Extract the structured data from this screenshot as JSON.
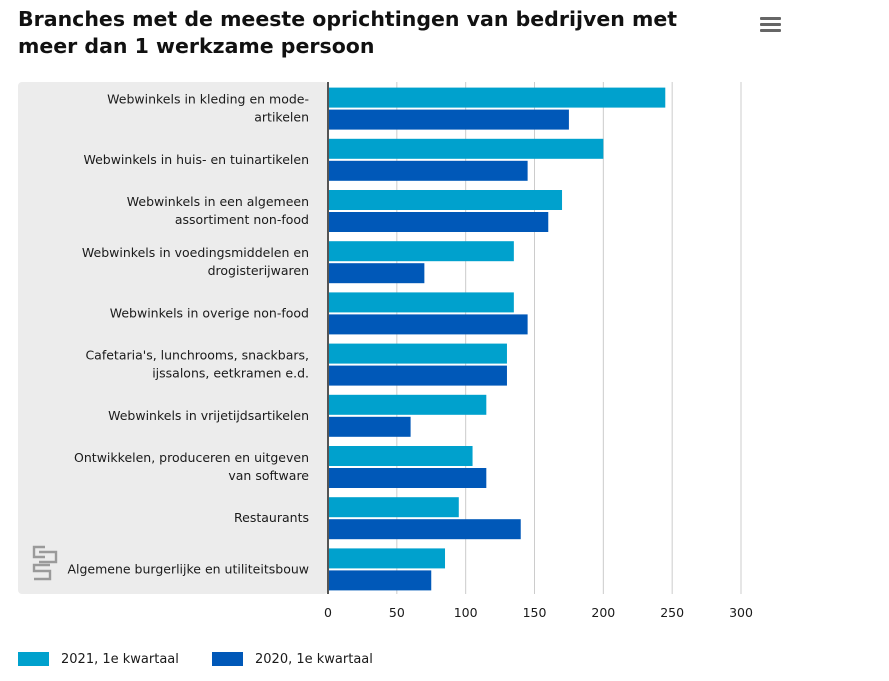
{
  "title": "Branches met de meeste oprichtingen van bedrijven met meer dan 1 werkzame persoon",
  "menu_icon": "hamburger-menu-icon",
  "logo_icon": "cbs-logo-icon",
  "colors": {
    "series_2021": "#00a1cd",
    "series_2020": "#0058b8",
    "panel": "#ececec",
    "grid": "#cccccc",
    "axis": "#555555"
  },
  "chart_data": {
    "type": "bar",
    "orientation": "horizontal",
    "title": "Branches met de meeste oprichtingen van bedrijven met meer dan 1 werkzame persoon",
    "categories": [
      [
        "Webwinkels in kleding en mode-",
        "artikelen"
      ],
      [
        "Webwinkels in huis- en tuinartikelen"
      ],
      [
        "Webwinkels in een algemeen",
        "assortiment non-food"
      ],
      [
        "Webwinkels in voedingsmiddelen en",
        "drogisterijwaren"
      ],
      [
        "Webwinkels in overige non-food"
      ],
      [
        "Cafetaria's, lunchrooms, snackbars,",
        "ijssalons, eetkramen e.d."
      ],
      [
        "Webwinkels in vrijetijdsartikelen"
      ],
      [
        "Ontwikkelen, produceren en uitgeven",
        "van software"
      ],
      [
        "Restaurants"
      ],
      [
        "Algemene burgerlijke en utiliteitsbouw"
      ]
    ],
    "series": [
      {
        "name": "2021, 1e kwartaal",
        "color": "#00a1cd",
        "values": [
          245,
          200,
          170,
          135,
          135,
          130,
          115,
          105,
          95,
          85
        ]
      },
      {
        "name": "2020, 1e kwartaal",
        "color": "#0058b8",
        "values": [
          175,
          145,
          160,
          70,
          145,
          130,
          60,
          115,
          140,
          75
        ]
      }
    ],
    "xlim": [
      0,
      300
    ],
    "xticks": [
      0,
      50,
      100,
      150,
      200,
      250,
      300
    ],
    "grid": true,
    "legend_position": "bottom-left"
  },
  "legend": {
    "series_2021": "2021, 1e kwartaal",
    "series_2020": "2020, 1e kwartaal"
  }
}
